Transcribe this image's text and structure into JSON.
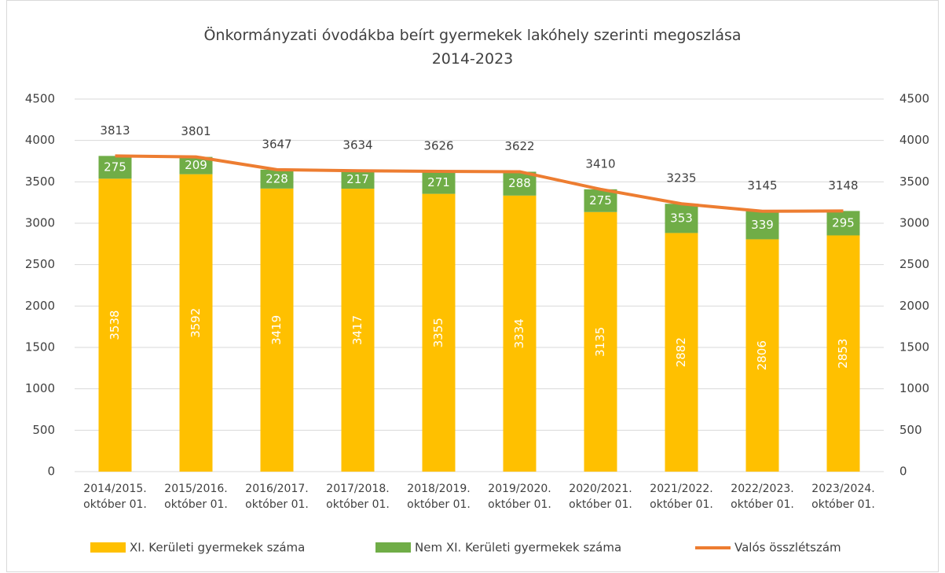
{
  "chart_data": {
    "type": "bar",
    "title": "Önkormányzati óvodákba beírt gyermekek lakóhely szerinti megoszlása\n2014-2023",
    "categories": [
      "2014/2015.\noktóber 01.",
      "2015/2016.\noktóber 01.",
      "2016/2017.\noktóber 01.",
      "2017/2018.\noktóber 01.",
      "2018/2019.\noktóber 01.",
      "2019/2020.\noktóber 01.",
      "2020/2021.\noktóber 01.",
      "2021/2022.\noktóber 01.",
      "2022/2023.\noktóber 01.",
      "2023/2024.\noktóber 01."
    ],
    "series": [
      {
        "name": "XI. Kerületi gyermekek száma",
        "color": "#ffc000",
        "values": [
          3538,
          3592,
          3419,
          3417,
          3355,
          3334,
          3135,
          2882,
          2806,
          2853
        ]
      },
      {
        "name": "Nem XI. Kerületi gyermekek száma",
        "color": "#70ad47",
        "values": [
          275,
          209,
          228,
          217,
          271,
          288,
          275,
          353,
          339,
          295
        ]
      },
      {
        "name": "Valós összlétszám",
        "color": "#ed7d31",
        "type": "line",
        "axis": "y2",
        "values": [
          3813,
          3801,
          3647,
          3634,
          3626,
          3622,
          3410,
          3235,
          3145,
          3148
        ]
      }
    ],
    "ylim": [
      0,
      4500
    ],
    "yticks": [
      0,
      500,
      1000,
      1500,
      2000,
      2500,
      3000,
      3500,
      4000,
      4500
    ],
    "y2lim": [
      0,
      4500
    ],
    "y2ticks": [
      0,
      500,
      1000,
      1500,
      2000,
      2500,
      3000,
      3500,
      4000,
      4500
    ],
    "grid": true,
    "legend": "bottom"
  }
}
